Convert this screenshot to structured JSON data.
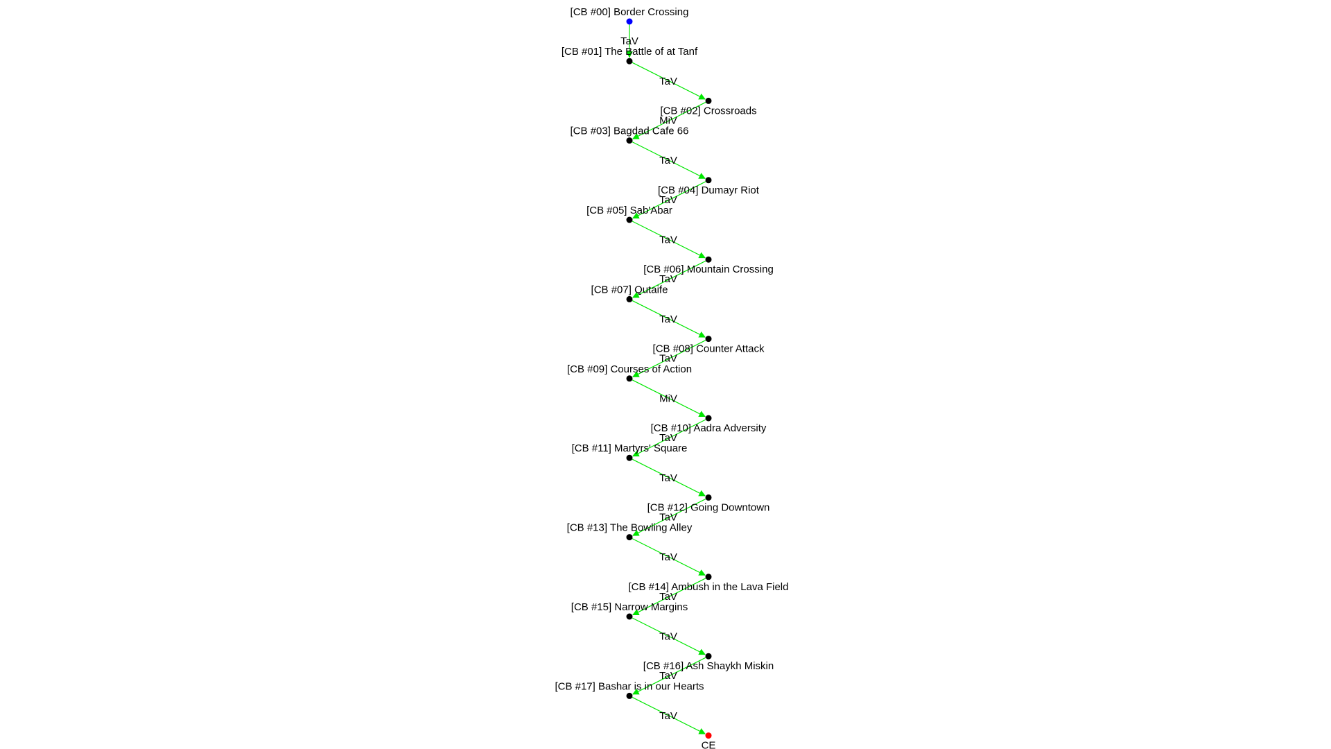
{
  "graph": {
    "nodes": [
      {
        "id": "n00",
        "label": "[CB #00] Border Crossing",
        "type": "start"
      },
      {
        "id": "n01",
        "label": "[CB #01] The Battle of at Tanf",
        "type": "normal"
      },
      {
        "id": "n02",
        "label": "[CB #02] Crossroads",
        "type": "normal"
      },
      {
        "id": "n03",
        "label": "[CB #03] Bagdad Cafe 66",
        "type": "normal"
      },
      {
        "id": "n04",
        "label": "[CB #04] Dumayr Riot",
        "type": "normal"
      },
      {
        "id": "n05",
        "label": "[CB #05] Sab'Abar",
        "type": "normal"
      },
      {
        "id": "n06",
        "label": "[CB #06] Mountain Crossing",
        "type": "normal"
      },
      {
        "id": "n07",
        "label": "[CB #07] Qutaife",
        "type": "normal"
      },
      {
        "id": "n08",
        "label": "[CB #08] Counter Attack",
        "type": "normal"
      },
      {
        "id": "n09",
        "label": "[CB #09] Courses of Action",
        "type": "normal"
      },
      {
        "id": "n10",
        "label": "[CB #10] Aadra Adversity",
        "type": "normal"
      },
      {
        "id": "n11",
        "label": "[CB #11] Martyrs' Square",
        "type": "normal"
      },
      {
        "id": "n12",
        "label": "[CB #12] Going Downtown",
        "type": "normal"
      },
      {
        "id": "n13",
        "label": "[CB #13] The Bowling Alley",
        "type": "normal"
      },
      {
        "id": "n14",
        "label": "[CB #14] Ambush in the Lava Field",
        "type": "normal"
      },
      {
        "id": "n15",
        "label": "[CB #15] Narrow Margins",
        "type": "normal"
      },
      {
        "id": "n16",
        "label": "[CB #16] Ash Shaykh Miskin",
        "type": "normal"
      },
      {
        "id": "n17",
        "label": "[CB #17] Bashar is in our Hearts",
        "type": "normal"
      },
      {
        "id": "ce",
        "label": "CE",
        "type": "end"
      }
    ],
    "edges": [
      {
        "from": "n00",
        "to": "n01",
        "label": "TaV"
      },
      {
        "from": "n01",
        "to": "n02",
        "label": "TaV"
      },
      {
        "from": "n02",
        "to": "n03",
        "label": "MiV"
      },
      {
        "from": "n03",
        "to": "n04",
        "label": "TaV"
      },
      {
        "from": "n04",
        "to": "n05",
        "label": "TaV"
      },
      {
        "from": "n05",
        "to": "n06",
        "label": "TaV"
      },
      {
        "from": "n06",
        "to": "n07",
        "label": "TaV"
      },
      {
        "from": "n07",
        "to": "n08",
        "label": "TaV"
      },
      {
        "from": "n08",
        "to": "n09",
        "label": "TaV"
      },
      {
        "from": "n09",
        "to": "n10",
        "label": "MiV"
      },
      {
        "from": "n10",
        "to": "n11",
        "label": "TaV"
      },
      {
        "from": "n11",
        "to": "n12",
        "label": "TaV"
      },
      {
        "from": "n12",
        "to": "n13",
        "label": "TaV"
      },
      {
        "from": "n13",
        "to": "n14",
        "label": "TaV"
      },
      {
        "from": "n14",
        "to": "n15",
        "label": "TaV"
      },
      {
        "from": "n15",
        "to": "n16",
        "label": "TaV"
      },
      {
        "from": "n16",
        "to": "n17",
        "label": "TaV"
      },
      {
        "from": "n17",
        "to": "ce",
        "label": "TaV"
      }
    ],
    "colors": {
      "edge": "#00e600",
      "node": "#000000",
      "start": "#0000ff",
      "end": "#ff0000",
      "text": "#000000"
    }
  }
}
